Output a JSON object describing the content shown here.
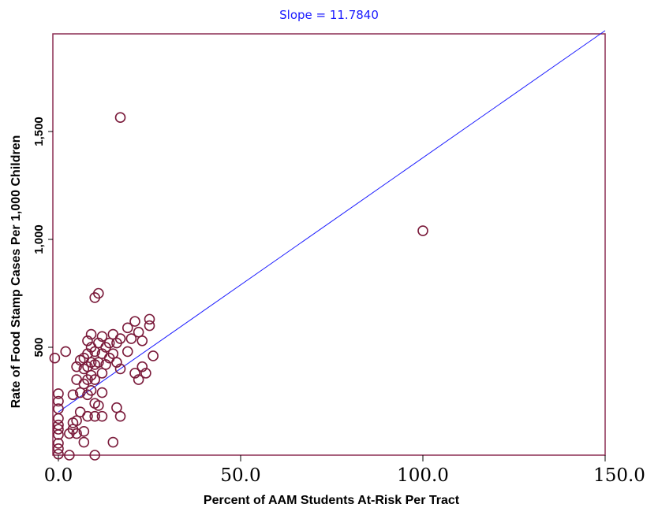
{
  "chart_data": {
    "type": "scatter",
    "title": "Slope = 11.7840",
    "xlabel": "Percent of AAM Students At-Risk Per Tract",
    "ylabel": "Rate of Food Stamp Cases Per 1,000 Children",
    "xlim": [
      -1.5,
      150
    ],
    "ylim": [
      0,
      1950
    ],
    "x_ticks": [
      {
        "value": 0,
        "label": "0.0"
      },
      {
        "value": 50,
        "label": "50.0"
      },
      {
        "value": 100,
        "label": "100.0"
      },
      {
        "value": 150,
        "label": "150.0"
      }
    ],
    "y_ticks": [
      {
        "value": 500,
        "label": "500"
      },
      {
        "value": 1000,
        "label": "1,000"
      },
      {
        "value": 1500,
        "label": "1,500"
      }
    ],
    "grid": false,
    "legend": "none",
    "colors": {
      "plot_border": "#8b2d52",
      "points": "#7a1a3a",
      "fit_line": "#1a1aff",
      "title": "#1a1aff"
    },
    "fit_line": {
      "slope": 11.784,
      "intercept": 200,
      "x_range": [
        0,
        150
      ]
    },
    "points": [
      [
        17,
        1565
      ],
      [
        100,
        1040
      ],
      [
        11,
        750
      ],
      [
        10,
        730
      ],
      [
        -1,
        450
      ],
      [
        0,
        285
      ],
      [
        0,
        250
      ],
      [
        0,
        215
      ],
      [
        0,
        170
      ],
      [
        0,
        140
      ],
      [
        0,
        120
      ],
      [
        0,
        95
      ],
      [
        0,
        55
      ],
      [
        0,
        30
      ],
      [
        0,
        5
      ],
      [
        2,
        480
      ],
      [
        3,
        100
      ],
      [
        3,
        0
      ],
      [
        4,
        150
      ],
      [
        4,
        120
      ],
      [
        4,
        280
      ],
      [
        5,
        100
      ],
      [
        5,
        160
      ],
      [
        5,
        350
      ],
      [
        5,
        410
      ],
      [
        6,
        440
      ],
      [
        6,
        200
      ],
      [
        6,
        290
      ],
      [
        7,
        110
      ],
      [
        7,
        60
      ],
      [
        7,
        450
      ],
      [
        7,
        400
      ],
      [
        7,
        330
      ],
      [
        8,
        350
      ],
      [
        8,
        180
      ],
      [
        8,
        280
      ],
      [
        8,
        530
      ],
      [
        8,
        470
      ],
      [
        8,
        410
      ],
      [
        9,
        560
      ],
      [
        9,
        500
      ],
      [
        9,
        430
      ],
      [
        9,
        370
      ],
      [
        9,
        300
      ],
      [
        10,
        480
      ],
      [
        10,
        420
      ],
      [
        10,
        350
      ],
      [
        10,
        240
      ],
      [
        10,
        180
      ],
      [
        10,
        0
      ],
      [
        11,
        520
      ],
      [
        11,
        430
      ],
      [
        11,
        230
      ],
      [
        12,
        550
      ],
      [
        12,
        470
      ],
      [
        12,
        380
      ],
      [
        12,
        290
      ],
      [
        12,
        180
      ],
      [
        13,
        500
      ],
      [
        13,
        420
      ],
      [
        14,
        520
      ],
      [
        14,
        450
      ],
      [
        15,
        560
      ],
      [
        15,
        470
      ],
      [
        15,
        60
      ],
      [
        16,
        520
      ],
      [
        16,
        430
      ],
      [
        16,
        220
      ],
      [
        17,
        540
      ],
      [
        17,
        400
      ],
      [
        17,
        180
      ],
      [
        19,
        590
      ],
      [
        19,
        480
      ],
      [
        20,
        540
      ],
      [
        21,
        620
      ],
      [
        21,
        380
      ],
      [
        22,
        570
      ],
      [
        22,
        350
      ],
      [
        23,
        530
      ],
      [
        23,
        410
      ],
      [
        24,
        380
      ],
      [
        25,
        630
      ],
      [
        25,
        600
      ],
      [
        26,
        460
      ]
    ]
  }
}
